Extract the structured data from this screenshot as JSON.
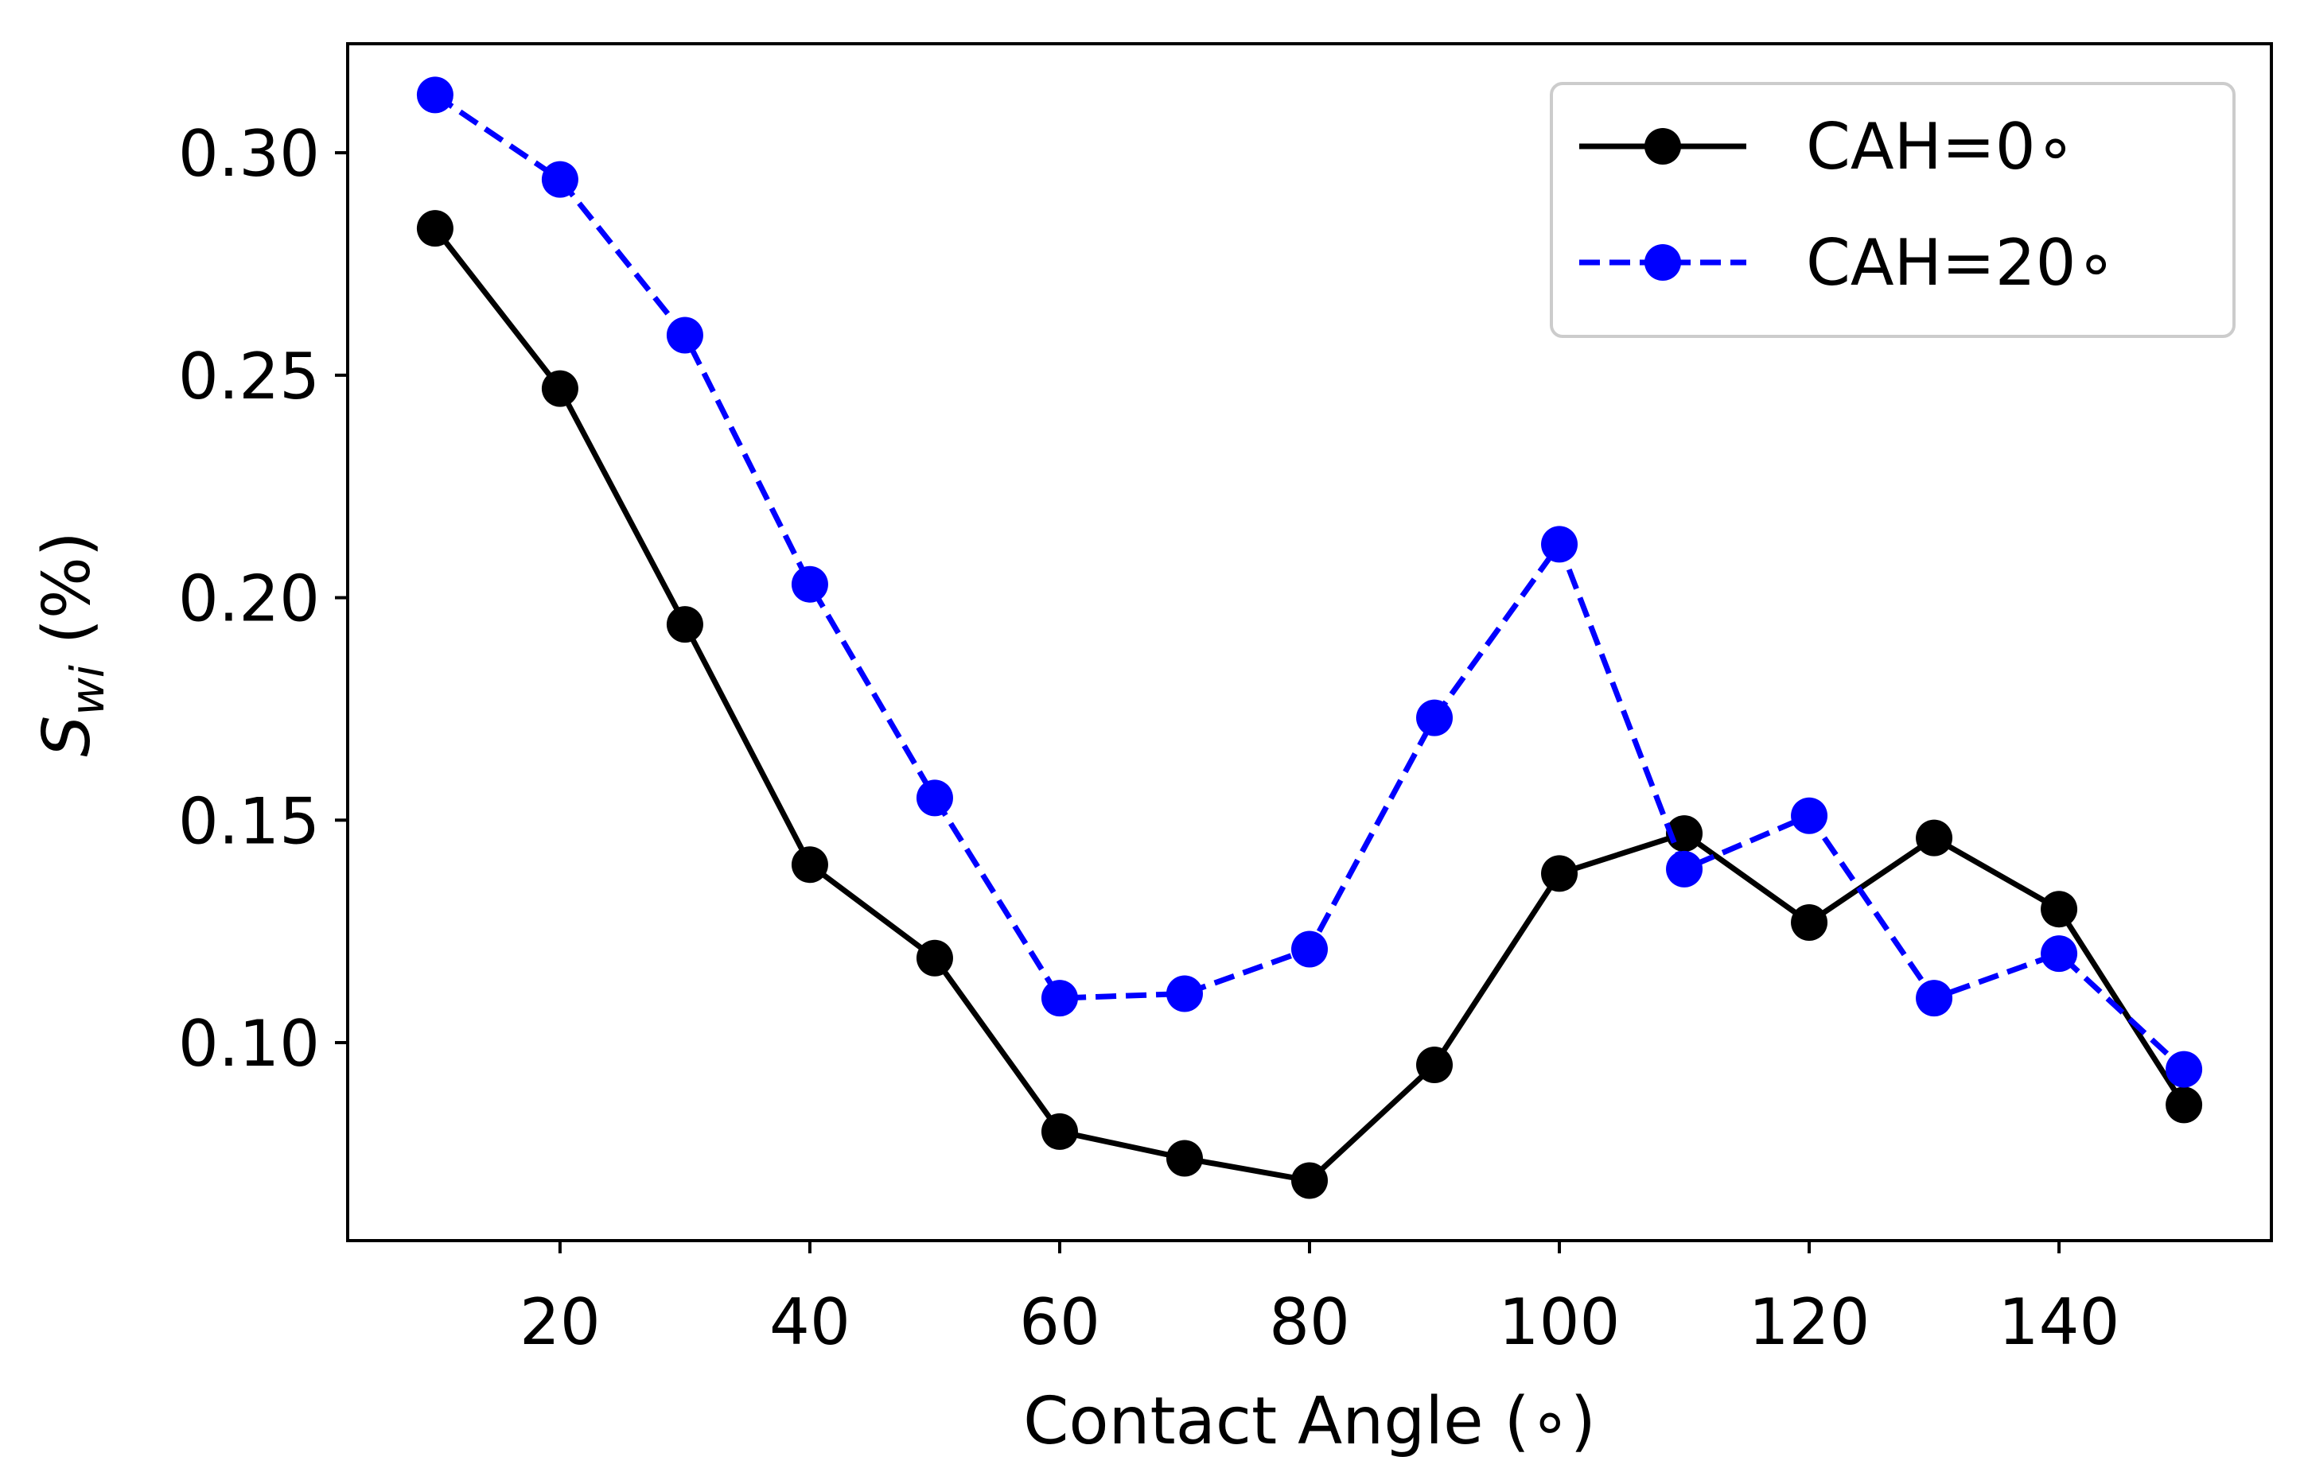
{
  "chart_data": {
    "type": "line",
    "title": "",
    "xlabel": "Contact Angle (∘)",
    "ylabel_main": "S",
    "ylabel_sub": "wi",
    "ylabel_rest": " (%)",
    "x": [
      10,
      20,
      30,
      40,
      50,
      60,
      70,
      80,
      90,
      100,
      110,
      120,
      130,
      140,
      150
    ],
    "xlim": [
      3,
      157
    ],
    "ylim": [
      0.0555,
      0.3245
    ],
    "xticks": [
      20,
      40,
      60,
      80,
      100,
      120,
      140
    ],
    "yticks": [
      0.1,
      0.15,
      0.2,
      0.25,
      0.3
    ],
    "ytick_labels": [
      "0.10",
      "0.15",
      "0.20",
      "0.25",
      "0.30"
    ],
    "xtick_labels": [
      "20",
      "40",
      "60",
      "80",
      "100",
      "120",
      "140"
    ],
    "grid": false,
    "legend_position": "top-right",
    "series": [
      {
        "name": "CAH=0∘",
        "color": "#000000",
        "linestyle": "solid",
        "marker": "circle",
        "values": [
          0.283,
          0.247,
          0.194,
          0.14,
          0.119,
          0.08,
          0.074,
          0.069,
          0.095,
          0.138,
          0.147,
          0.127,
          0.146,
          0.13,
          0.086
        ]
      },
      {
        "name": "CAH=20∘",
        "color": "#0000ff",
        "linestyle": "dashed",
        "marker": "circle",
        "values": [
          0.313,
          0.294,
          0.259,
          0.203,
          0.155,
          0.11,
          0.111,
          0.121,
          0.173,
          0.212,
          0.139,
          0.151,
          0.11,
          0.12,
          0.094
        ]
      }
    ]
  }
}
